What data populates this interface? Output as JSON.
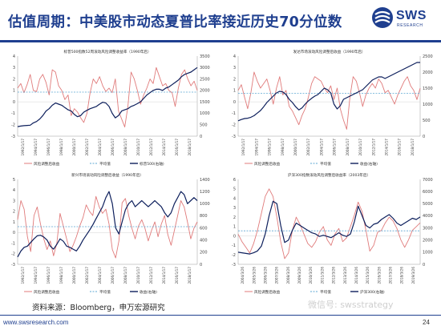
{
  "header": {
    "title": "估值周期：中美股市动态夏普比率接近历史70分位数",
    "logo_text": "SWS",
    "logo_sub": "RESEARCH"
  },
  "footer": {
    "source": "资料来源：Bloomberg，申万宏源研究",
    "url": "www.swsresearch.com",
    "page": "24",
    "watermark": "微信号: swsstrategy"
  },
  "colors": {
    "brand": "#1f3f8f",
    "risk": "#e07b7b",
    "mean": "#5fa8d3",
    "index": "#0d1f5c"
  },
  "chart_data": [
    {
      "type": "line",
      "title": "标普500指数52周滚动风险调整收益率（1990年后）",
      "x_ticks": [
        "1992/1/17",
        "1994/1/17",
        "1996/1/17",
        "1998/1/17",
        "2000/1/17",
        "2002/1/17",
        "2004/1/17",
        "2006/1/17",
        "2008/1/17",
        "2010/1/17",
        "2012/1/17",
        "2014/1/17",
        "2016/1/17",
        "2018/1/17"
      ],
      "ylim_left": [
        -3,
        4
      ],
      "yticks_left": [
        4,
        3,
        2,
        1,
        0,
        -1,
        -2,
        -3
      ],
      "ylim_right": [
        0,
        3500
      ],
      "yticks_right": [
        3500,
        3000,
        2500,
        2000,
        1500,
        1000,
        500,
        0
      ],
      "legend": [
        "风险调整后收益",
        "平均值",
        "标普500(右轴)"
      ],
      "series": [
        {
          "name": "风险调整后收益",
          "axis": "left",
          "values": [
            1.2,
            1.6,
            0.8,
            1.5,
            2.4,
            1.0,
            0.9,
            2.0,
            2.4,
            1.7,
            0.6,
            2.8,
            2.6,
            1.4,
            1.0,
            0.2,
            0.6,
            -1.2,
            -0.6,
            -0.9,
            -1.4,
            -1.8,
            -1.0,
            0.8,
            2.0,
            1.6,
            2.2,
            1.4,
            0.9,
            1.2,
            0.8,
            2.0,
            -0.8,
            -1.5,
            -2.2,
            -0.4,
            2.6,
            2.0,
            1.0,
            -0.2,
            0.6,
            1.2,
            2.0,
            1.6,
            3.0,
            2.2,
            1.4,
            1.6,
            1.0,
            0.8,
            -0.4,
            1.2,
            2.4,
            2.8,
            2.0,
            1.4,
            1.8,
            1.0
          ]
        },
        {
          "name": "平均值",
          "axis": "left",
          "values": [
            0.85,
            0.85
          ]
        },
        {
          "name": "标普500(右轴)",
          "axis": "right",
          "values": [
            415,
            440,
            460,
            470,
            480,
            580,
            640,
            750,
            900,
            1100,
            1200,
            1350,
            1450,
            1400,
            1350,
            1250,
            1150,
            1100,
            950,
            850,
            900,
            1050,
            1130,
            1200,
            1250,
            1300,
            1400,
            1480,
            1450,
            1300,
            1000,
            800,
            900,
            1100,
            1150,
            1200,
            1300,
            1350,
            1420,
            1500,
            1650,
            1800,
            1900,
            2000,
            2050,
            2050,
            2000,
            2100,
            2150,
            2250,
            2350,
            2450,
            2600,
            2700,
            2750,
            2800,
            2900,
            3000
          ]
        }
      ]
    },
    {
      "type": "line",
      "title": "发达市场滚动风险调整后收益（1990年后）",
      "x_ticks": [
        "1992/1/17",
        "1994/1/17",
        "1996/1/17",
        "1998/1/17",
        "2000/1/17",
        "2002/1/17",
        "2004/1/17",
        "2006/1/17",
        "2008/1/17",
        "2010/1/17",
        "2012/1/17",
        "2014/1/17",
        "2016/1/17",
        "2018/1/17"
      ],
      "ylim_left": [
        -3,
        4
      ],
      "yticks_left": [
        4,
        3,
        2,
        1,
        0,
        -1,
        -2,
        -3
      ],
      "ylim_right": [
        0,
        2500
      ],
      "yticks_right": [
        2500,
        2000,
        1500,
        1000,
        500,
        0
      ],
      "legend": [
        "风险调整后收益",
        "平均值",
        "收益(右轴)"
      ],
      "series": [
        {
          "name": "风险调整后收益",
          "axis": "left",
          "values": [
            1.0,
            1.5,
            0.4,
            -0.6,
            0.8,
            2.6,
            1.8,
            1.2,
            1.6,
            2.0,
            1.0,
            -0.2,
            1.2,
            2.2,
            0.6,
            1.0,
            -0.4,
            -0.8,
            -1.4,
            -2.0,
            -1.2,
            -0.6,
            0.4,
            1.6,
            2.2,
            2.0,
            1.8,
            1.2,
            0.8,
            1.4,
            0.2,
            1.2,
            -0.6,
            -1.6,
            -2.4,
            0.4,
            2.2,
            1.8,
            0.8,
            -0.4,
            0.6,
            1.2,
            1.6,
            1.2,
            2.0,
            1.6,
            0.8,
            1.0,
            0.4,
            -0.2,
            0.6,
            1.2,
            1.8,
            2.2,
            1.4,
            1.0,
            0.2,
            1.2
          ]
        },
        {
          "name": "平均值",
          "axis": "left",
          "values": [
            0.75,
            0.75
          ]
        },
        {
          "name": "收益(右轴)",
          "axis": "right",
          "values": [
            480,
            520,
            550,
            560,
            590,
            640,
            720,
            800,
            920,
            1050,
            1150,
            1250,
            1350,
            1400,
            1380,
            1300,
            1150,
            1050,
            920,
            820,
            880,
            1000,
            1100,
            1180,
            1250,
            1300,
            1400,
            1500,
            1450,
            1350,
            1000,
            850,
            950,
            1150,
            1200,
            1250,
            1300,
            1350,
            1400,
            1450,
            1550,
            1650,
            1750,
            1800,
            1850,
            1850,
            1800,
            1850,
            1900,
            1950,
            2000,
            2050,
            2100,
            2150,
            2200,
            2250,
            2300,
            2300
          ]
        }
      ]
    },
    {
      "type": "line",
      "title": "新兴市场滚动风险调整后收益（1990年后）",
      "x_ticks": [
        "1992/1/17",
        "1994/1/17",
        "1996/1/17",
        "1998/1/17",
        "2000/1/17",
        "2002/1/17",
        "2004/1/17",
        "2006/1/17",
        "2008/1/17",
        "2010/1/17",
        "2012/1/17",
        "2014/1/17",
        "2016/1/17",
        "2018/1/17"
      ],
      "ylim_left": [
        -3,
        5
      ],
      "yticks_left": [
        5,
        4,
        3,
        2,
        1,
        0,
        -1,
        -2,
        -3
      ],
      "ylim_right": [
        0,
        1400
      ],
      "yticks_right": [
        1400,
        1200,
        1000,
        800,
        600,
        400,
        200,
        0
      ],
      "legend": [
        "风险调整后收益",
        "平均值",
        "收益(右轴)"
      ],
      "series": [
        {
          "name": "风险调整后收益",
          "axis": "left",
          "values": [
            1.2,
            3.0,
            2.2,
            -0.4,
            -1.8,
            1.6,
            2.4,
            0.8,
            -0.6,
            -1.6,
            -0.8,
            -2.2,
            -1.0,
            1.8,
            0.6,
            -0.6,
            -1.8,
            -1.2,
            -0.4,
            0.6,
            1.4,
            2.6,
            2.0,
            1.6,
            3.4,
            2.4,
            1.8,
            2.2,
            0.8,
            -1.6,
            -2.4,
            -0.8,
            2.8,
            3.2,
            1.6,
            0.4,
            -0.6,
            0.6,
            1.2,
            0.4,
            -0.8,
            0.2,
            1.0,
            -0.4,
            0.8,
            1.6,
            -0.2,
            -1.2,
            0.2,
            1.6,
            3.0,
            2.4,
            1.0,
            -0.6,
            0.4,
            1.0
          ]
        },
        {
          "name": "平均值",
          "axis": "left",
          "values": [
            0.55,
            0.55
          ]
        },
        {
          "name": "收益(右轴)",
          "axis": "right",
          "values": [
            120,
            220,
            280,
            300,
            360,
            420,
            470,
            480,
            450,
            400,
            300,
            250,
            330,
            420,
            380,
            300,
            280,
            250,
            220,
            300,
            400,
            480,
            560,
            650,
            750,
            850,
            950,
            1100,
            1200,
            1000,
            600,
            500,
            700,
            900,
            1000,
            1050,
            950,
            1000,
            1050,
            1000,
            950,
            1000,
            1050,
            1000,
            950,
            850,
            780,
            850,
            1000,
            1100,
            1200,
            1150,
            1000,
            1050,
            1100,
            1050
          ]
        }
      ]
    },
    {
      "type": "line",
      "title": "沪深300指数滚动风险调整后收益率（2003年后）",
      "x_ticks": [
        "2004/3/26",
        "2005/3/26",
        "2006/3/26",
        "2007/3/26",
        "2008/3/26",
        "2009/3/26",
        "2010/3/26",
        "2011/3/26",
        "2012/3/26",
        "2013/3/26",
        "2014/3/26",
        "2015/3/26",
        "2016/3/26",
        "2017/3/26",
        "2018/3/26",
        "2019/3/26"
      ],
      "ylim_left": [
        -3,
        6
      ],
      "yticks_left": [
        6,
        5,
        4,
        3,
        2,
        1,
        0,
        -1,
        -2,
        -3
      ],
      "ylim_right": [
        0,
        7000
      ],
      "yticks_right": [
        7000,
        6000,
        5000,
        4000,
        3000,
        2000,
        1000,
        0
      ],
      "legend": [
        "风险调整后收益",
        "平均值",
        "沪深300(右轴)"
      ],
      "series": [
        {
          "name": "风险调整后收益",
          "axis": "left",
          "values": [
            0.2,
            -0.6,
            -1.2,
            -1.8,
            -0.8,
            0.6,
            2.4,
            4.2,
            5.0,
            4.2,
            2.0,
            -0.6,
            -2.4,
            -1.8,
            0.6,
            2.0,
            1.2,
            0.2,
            -0.8,
            -1.2,
            -0.6,
            0.4,
            1.0,
            -0.4,
            -1.0,
            0.2,
            0.8,
            -0.6,
            -0.2,
            1.0,
            2.2,
            3.6,
            2.6,
            0.6,
            -1.6,
            -1.0,
            0.4,
            0.6,
            1.4,
            2.0,
            1.6,
            0.8,
            -0.4,
            -1.2,
            -0.4,
            0.6,
            1.0,
            1.4
          ]
        },
        {
          "name": "平均值",
          "axis": "left",
          "values": [
            0.55,
            0.55
          ]
        },
        {
          "name": "沪深300(右轴)",
          "axis": "right",
          "values": [
            1000,
            950,
            900,
            850,
            950,
            1100,
            1500,
            2500,
            4000,
            5200,
            5000,
            3200,
            1800,
            2000,
            2800,
            3400,
            3200,
            3000,
            2800,
            2600,
            2500,
            2300,
            2400,
            2300,
            2200,
            2400,
            2600,
            2400,
            2300,
            2500,
            3500,
            4800,
            4000,
            3200,
            3000,
            3300,
            3400,
            3700,
            3900,
            4100,
            3800,
            3400,
            3200,
            3400,
            3600,
            3800,
            3700,
            3900
          ]
        }
      ]
    }
  ]
}
